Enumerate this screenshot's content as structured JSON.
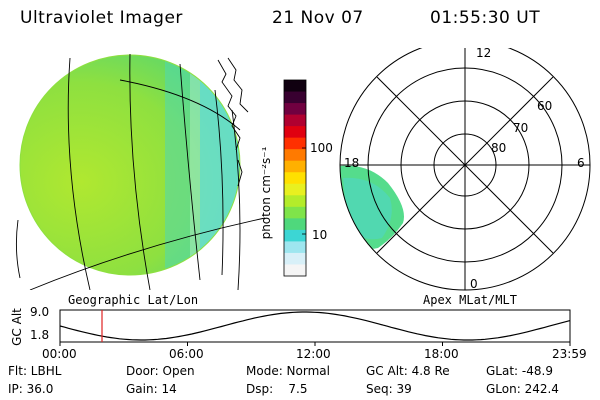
{
  "header": {
    "instrument": "Ultraviolet Imager",
    "date": "21 Nov 07",
    "time": "01:55:30 UT"
  },
  "colorbar": {
    "unit_label": "photon cm⁻²s⁻¹",
    "tick_high": "100",
    "tick_low": "10",
    "colors": [
      "#f5f5f5",
      "#d8f0f8",
      "#9ee6ef",
      "#3cd6d4",
      "#4fd87c",
      "#7fe44a",
      "#b4ec2a",
      "#e8f020",
      "#ffe000",
      "#ffb000",
      "#ff7a00",
      "#ff3000",
      "#e00010",
      "#b00030",
      "#700040",
      "#380030",
      "#100010"
    ]
  },
  "geo_panel": {
    "label": "Geographic Lat/Lon"
  },
  "polar_panel": {
    "label": "Apex MLat/MLT",
    "mlt_labels": {
      "top": "12",
      "left": "18",
      "right": "6",
      "bottom": "0"
    },
    "lat_labels": [
      "60",
      "70",
      "80"
    ]
  },
  "altitude_plot": {
    "ylabel": "GC Alt",
    "ymax_label": "9.0",
    "ymin_label": "1.8",
    "x_ticks": [
      "00:00",
      "06:00",
      "12:00",
      "18:00",
      "23:59"
    ],
    "marker_color": "#e02020"
  },
  "footer": {
    "row1": {
      "flt": "Flt: LBHL",
      "door": "Door: Open",
      "mode": "Mode: Normal",
      "gcalt": "GC Alt: 4.8 Re",
      "glat": "GLat: -48.9"
    },
    "row2": {
      "ip": "IP: 36.0",
      "gain": "Gain: 14",
      "dsp": "Dsp:    7.5",
      "seq": "Seq: 39",
      "glon": "GLon: 242.4"
    }
  }
}
